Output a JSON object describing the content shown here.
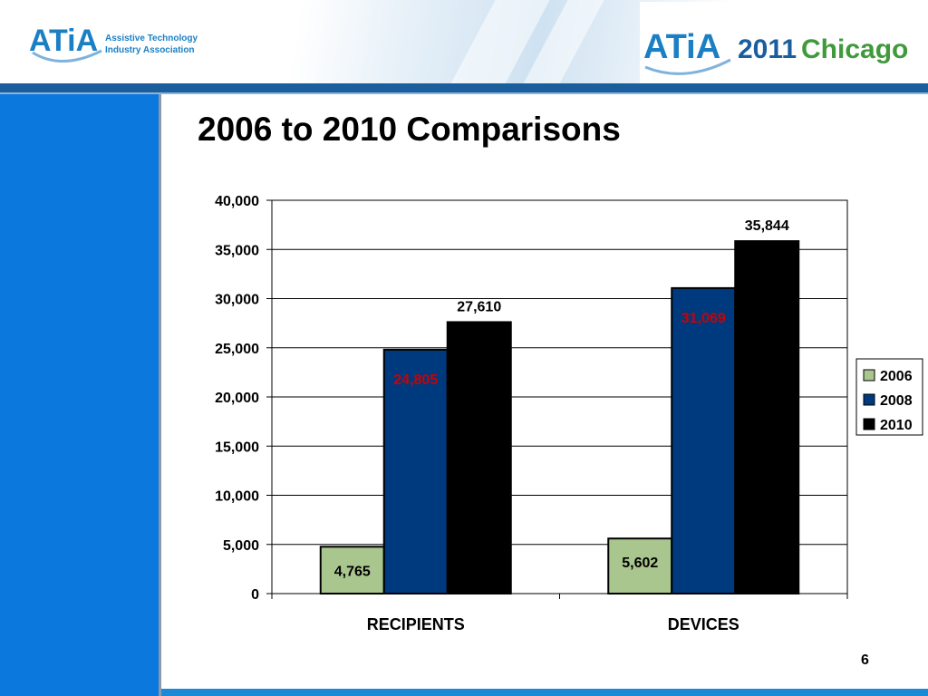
{
  "header": {
    "logo_left": {
      "brand": "ATiA",
      "line1": "Assistive Technology",
      "line2": "Industry Association"
    },
    "logo_right": {
      "brand": "ATiA",
      "year": "2011",
      "city": "Chicago"
    }
  },
  "slide": {
    "title": "2006 to 2010 Comparisons",
    "page_number": "6"
  },
  "colors": {
    "series_2006": "#a9c68e",
    "series_2008": "#003a7e",
    "series_2010": "#000000",
    "sidebar": "#0b78dd",
    "accent": "#1a5e9e"
  },
  "chart_data": {
    "type": "bar",
    "categories": [
      "RECIPIENTS",
      "DEVICES"
    ],
    "series": [
      {
        "name": "2006",
        "values": [
          4765,
          5602
        ],
        "labels": [
          "4,765",
          "5,602"
        ]
      },
      {
        "name": "2008",
        "values": [
          24805,
          31069
        ],
        "labels": [
          "24,805",
          "31,069"
        ]
      },
      {
        "name": "2010",
        "values": [
          27610,
          35844
        ],
        "labels": [
          "27,610",
          "35,844"
        ]
      }
    ],
    "ylim": [
      0,
      40000
    ],
    "yticks": [
      "0",
      "5,000",
      "10,000",
      "15,000",
      "20,000",
      "25,000",
      "30,000",
      "35,000",
      "40,000"
    ],
    "grid": true,
    "legend": "right"
  }
}
